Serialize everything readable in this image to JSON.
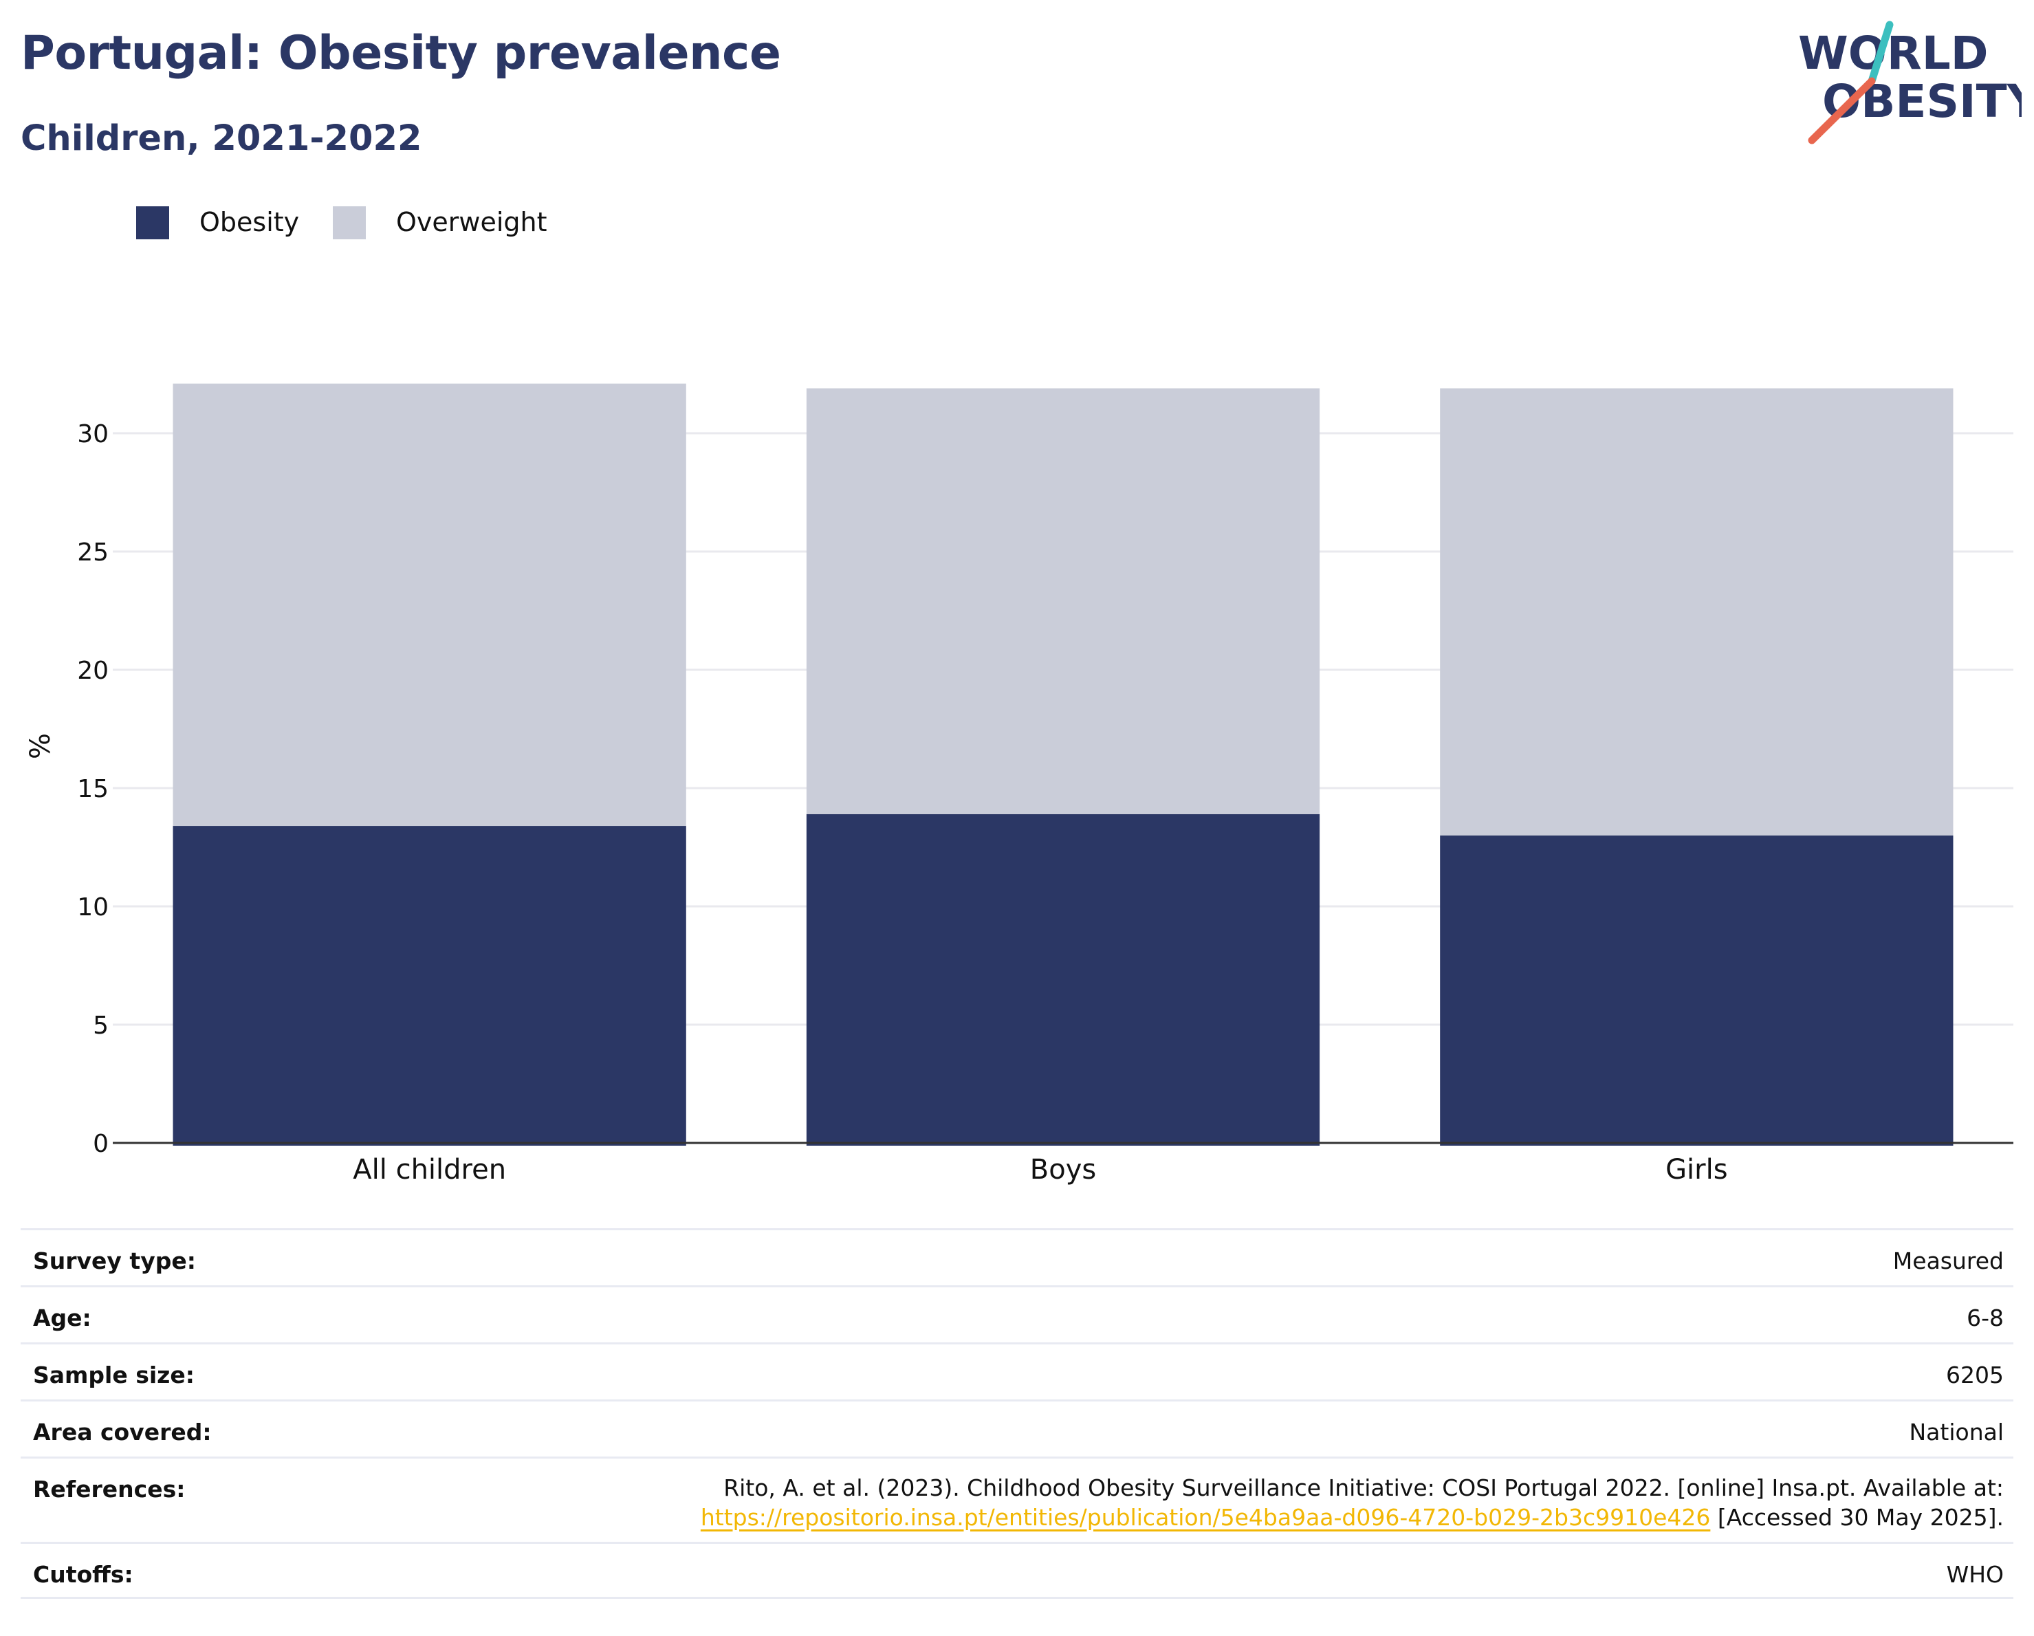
{
  "header": {
    "title": "Portugal: Obesity prevalence",
    "subtitle": "Children, 2021-2022"
  },
  "logo": {
    "line1": "WORLD",
    "line2": "OBESITY",
    "slash_colors": [
      "#3cbfbf",
      "#e8664e"
    ],
    "text_color": "#2b3765"
  },
  "colors": {
    "obesity": "#2b3765",
    "overweight": "#cacdd9",
    "grid": "#e9e9ee",
    "axis": "#333333",
    "link": "#f2b705"
  },
  "legend": {
    "items": [
      {
        "label": "Obesity",
        "color": "#2b3765"
      },
      {
        "label": "Overweight",
        "color": "#cacdd9"
      }
    ]
  },
  "chart_data": {
    "type": "bar",
    "stacked": true,
    "categories": [
      "All children",
      "Boys",
      "Girls"
    ],
    "series": [
      {
        "name": "Obesity",
        "values": [
          13.4,
          13.9,
          13.0
        ]
      },
      {
        "name": "Overweight",
        "values": [
          18.7,
          18.0,
          18.9
        ]
      }
    ],
    "ylabel": "%",
    "xlabel": "",
    "ylim": [
      0,
      32.1
    ],
    "yticks": [
      0,
      5,
      10,
      15,
      20,
      25,
      30
    ],
    "grid": true,
    "legend_position": "top-left"
  },
  "meta": {
    "rows": [
      {
        "key": "Survey type:",
        "value": "Measured"
      },
      {
        "key": "Age:",
        "value": "6-8"
      },
      {
        "key": "Sample size:",
        "value": "6205"
      },
      {
        "key": "Area covered:",
        "value": "National"
      },
      {
        "key": "References:",
        "value_line1": "Rito, A. et al. (2023). Childhood Obesity Surveillance Initiative: COSI Portugal 2022. [online] Insa.pt. Available at:",
        "link": "https://repositorio.insa.pt/entities/publication/5e4ba9aa-d096-4720-b029-2b3c9910e426",
        "value_suffix": " [Accessed 30 May 2025]."
      },
      {
        "key": "Cutoffs:",
        "value": "WHO"
      }
    ]
  }
}
